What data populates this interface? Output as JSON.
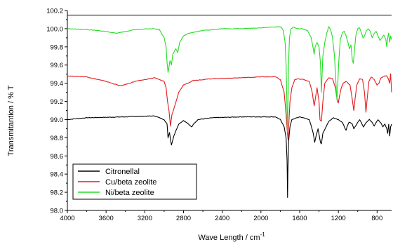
{
  "chart_data": {
    "type": "line",
    "title": "",
    "xlabel": "Wave Length / cm",
    "xlabel_superscript": "-1",
    "ylabel": "Transmitantion / % T",
    "xlim": [
      4000,
      650
    ],
    "ylim": [
      98.0,
      100.2
    ],
    "x_ticks": [
      4000,
      3600,
      3200,
      2800,
      2400,
      2000,
      1600,
      1200,
      800
    ],
    "x_tick_labels": [
      "4000",
      "3600",
      "3200",
      "2800",
      "2400",
      "2000",
      "1600",
      "1200",
      "800"
    ],
    "y_ticks": [
      98.0,
      98.2,
      98.4,
      98.6,
      98.8,
      99.0,
      99.2,
      99.4,
      99.6,
      99.8,
      100.0,
      100.2
    ],
    "y_tick_labels": [
      "98.0",
      "98.2",
      "98.4",
      "98.6",
      "98.8",
      "99.0",
      "99.2",
      "99.4",
      "99.6",
      "99.8",
      "100.0",
      "100.2"
    ],
    "reference_line_y": 100.15,
    "grid": false,
    "legend_position": "bottom-left",
    "series": [
      {
        "name": "Citronellal",
        "color": "#000000",
        "baseline": 99.03,
        "points": [
          [
            4000,
            99.0
          ],
          [
            3800,
            99.02
          ],
          [
            3400,
            99.03
          ],
          [
            3100,
            99.04
          ],
          [
            3000,
            99.0
          ],
          [
            2970,
            98.95
          ],
          [
            2960,
            98.8
          ],
          [
            2945,
            98.86
          ],
          [
            2925,
            98.72
          ],
          [
            2900,
            98.82
          ],
          [
            2870,
            98.9
          ],
          [
            2850,
            98.95
          ],
          [
            2800,
            98.99
          ],
          [
            2760,
            98.96
          ],
          [
            2740,
            98.94
          ],
          [
            2715,
            98.92
          ],
          [
            2690,
            98.96
          ],
          [
            2650,
            99.0
          ],
          [
            2500,
            99.02
          ],
          [
            2200,
            99.03
          ],
          [
            2000,
            99.03
          ],
          [
            1850,
            99.03
          ],
          [
            1800,
            99.0
          ],
          [
            1760,
            98.92
          ],
          [
            1740,
            98.8
          ],
          [
            1730,
            98.55
          ],
          [
            1725,
            98.14
          ],
          [
            1722,
            98.4
          ],
          [
            1715,
            98.75
          ],
          [
            1700,
            98.92
          ],
          [
            1680,
            99.0
          ],
          [
            1600,
            99.03
          ],
          [
            1500,
            99.0
          ],
          [
            1460,
            98.85
          ],
          [
            1445,
            98.75
          ],
          [
            1430,
            98.82
          ],
          [
            1410,
            98.9
          ],
          [
            1385,
            98.75
          ],
          [
            1375,
            98.73
          ],
          [
            1360,
            98.85
          ],
          [
            1300,
            98.98
          ],
          [
            1250,
            99.02
          ],
          [
            1200,
            99.0
          ],
          [
            1160,
            98.97
          ],
          [
            1120,
            98.88
          ],
          [
            1110,
            98.92
          ],
          [
            1090,
            98.97
          ],
          [
            1060,
            98.96
          ],
          [
            1040,
            98.9
          ],
          [
            1010,
            98.95
          ],
          [
            980,
            99.0
          ],
          [
            940,
            98.92
          ],
          [
            920,
            98.96
          ],
          [
            880,
            99.0
          ],
          [
            850,
            98.97
          ],
          [
            830,
            98.93
          ],
          [
            810,
            98.97
          ],
          [
            790,
            99.0
          ],
          [
            760,
            98.96
          ],
          [
            740,
            98.92
          ],
          [
            720,
            98.95
          ],
          [
            700,
            98.9
          ],
          [
            690,
            98.85
          ],
          [
            680,
            98.95
          ],
          [
            670,
            98.82
          ],
          [
            660,
            98.92
          ],
          [
            650,
            98.95
          ]
        ]
      },
      {
        "name": "Cu/beta zeolite",
        "color": "#e31a1c",
        "baseline": 99.45,
        "points": [
          [
            4000,
            99.48
          ],
          [
            3800,
            99.47
          ],
          [
            3600,
            99.42
          ],
          [
            3450,
            99.37
          ],
          [
            3300,
            99.42
          ],
          [
            3100,
            99.46
          ],
          [
            3000,
            99.42
          ],
          [
            2980,
            99.35
          ],
          [
            2965,
            99.2
          ],
          [
            2950,
            99.1
          ],
          [
            2935,
            98.93
          ],
          [
            2920,
            99.05
          ],
          [
            2890,
            99.15
          ],
          [
            2870,
            99.22
          ],
          [
            2850,
            99.3
          ],
          [
            2800,
            99.38
          ],
          [
            2700,
            99.43
          ],
          [
            2500,
            99.45
          ],
          [
            2200,
            99.46
          ],
          [
            2000,
            99.47
          ],
          [
            1850,
            99.47
          ],
          [
            1800,
            99.44
          ],
          [
            1760,
            99.3
          ],
          [
            1740,
            99.05
          ],
          [
            1730,
            98.9
          ],
          [
            1720,
            98.78
          ],
          [
            1712,
            98.95
          ],
          [
            1700,
            99.2
          ],
          [
            1680,
            99.35
          ],
          [
            1650,
            99.44
          ],
          [
            1620,
            99.45
          ],
          [
            1560,
            99.44
          ],
          [
            1500,
            99.42
          ],
          [
            1470,
            99.3
          ],
          [
            1450,
            99.15
          ],
          [
            1435,
            99.25
          ],
          [
            1420,
            99.35
          ],
          [
            1400,
            99.2
          ],
          [
            1390,
            99.0
          ],
          [
            1375,
            98.98
          ],
          [
            1360,
            99.2
          ],
          [
            1340,
            99.4
          ],
          [
            1300,
            99.46
          ],
          [
            1260,
            99.45
          ],
          [
            1230,
            99.35
          ],
          [
            1210,
            99.2
          ],
          [
            1200,
            99.18
          ],
          [
            1190,
            99.25
          ],
          [
            1170,
            99.35
          ],
          [
            1150,
            99.4
          ],
          [
            1120,
            99.42
          ],
          [
            1100,
            99.4
          ],
          [
            1080,
            99.38
          ],
          [
            1060,
            99.25
          ],
          [
            1040,
            99.1
          ],
          [
            1030,
            99.2
          ],
          [
            1010,
            99.38
          ],
          [
            980,
            99.45
          ],
          [
            950,
            99.44
          ],
          [
            930,
            99.3
          ],
          [
            915,
            99.08
          ],
          [
            905,
            99.2
          ],
          [
            885,
            99.42
          ],
          [
            860,
            99.47
          ],
          [
            830,
            99.44
          ],
          [
            800,
            99.38
          ],
          [
            780,
            99.4
          ],
          [
            760,
            99.46
          ],
          [
            720,
            99.48
          ],
          [
            700,
            99.48
          ],
          [
            685,
            99.45
          ],
          [
            670,
            99.4
          ],
          [
            660,
            99.5
          ],
          [
            650,
            99.3
          ]
        ]
      },
      {
        "name": "Ni/beta zeolite",
        "color": "#22dd22",
        "baseline": 100.0,
        "points": [
          [
            4000,
            100.0
          ],
          [
            3800,
            99.99
          ],
          [
            3600,
            99.97
          ],
          [
            3500,
            99.95
          ],
          [
            3450,
            99.96
          ],
          [
            3300,
            99.99
          ],
          [
            3100,
            100.0
          ],
          [
            3050,
            99.99
          ],
          [
            3000,
            99.9
          ],
          [
            2980,
            99.8
          ],
          [
            2970,
            99.63
          ],
          [
            2960,
            99.52
          ],
          [
            2950,
            99.58
          ],
          [
            2940,
            99.65
          ],
          [
            2925,
            99.6
          ],
          [
            2910,
            99.72
          ],
          [
            2880,
            99.78
          ],
          [
            2860,
            99.74
          ],
          [
            2840,
            99.85
          ],
          [
            2800,
            99.92
          ],
          [
            2750,
            99.95
          ],
          [
            2600,
            99.98
          ],
          [
            2400,
            100.0
          ],
          [
            2200,
            100.0
          ],
          [
            2000,
            100.01
          ],
          [
            1850,
            100.02
          ],
          [
            1790,
            100.02
          ],
          [
            1770,
            99.98
          ],
          [
            1750,
            99.85
          ],
          [
            1740,
            99.6
          ],
          [
            1732,
            99.2
          ],
          [
            1727,
            98.86
          ],
          [
            1722,
            99.1
          ],
          [
            1715,
            99.6
          ],
          [
            1705,
            99.9
          ],
          [
            1690,
            100.0
          ],
          [
            1660,
            100.02
          ],
          [
            1630,
            100.0
          ],
          [
            1580,
            100.0
          ],
          [
            1520,
            99.98
          ],
          [
            1480,
            99.9
          ],
          [
            1460,
            99.78
          ],
          [
            1450,
            99.72
          ],
          [
            1440,
            99.8
          ],
          [
            1420,
            99.85
          ],
          [
            1400,
            99.8
          ],
          [
            1385,
            99.62
          ],
          [
            1375,
            99.3
          ],
          [
            1368,
            99.5
          ],
          [
            1360,
            99.7
          ],
          [
            1340,
            99.85
          ],
          [
            1320,
            99.95
          ],
          [
            1300,
            100.02
          ],
          [
            1280,
            99.99
          ],
          [
            1260,
            99.9
          ],
          [
            1240,
            99.7
          ],
          [
            1225,
            99.4
          ],
          [
            1215,
            99.22
          ],
          [
            1208,
            99.35
          ],
          [
            1195,
            99.65
          ],
          [
            1180,
            99.88
          ],
          [
            1160,
            99.95
          ],
          [
            1140,
            99.97
          ],
          [
            1120,
            99.92
          ],
          [
            1100,
            99.85
          ],
          [
            1085,
            99.78
          ],
          [
            1070,
            99.82
          ],
          [
            1055,
            99.65
          ],
          [
            1045,
            99.62
          ],
          [
            1035,
            99.75
          ],
          [
            1020,
            99.92
          ],
          [
            1000,
            100.0
          ],
          [
            980,
            100.01
          ],
          [
            960,
            99.95
          ],
          [
            945,
            99.9
          ],
          [
            930,
            99.92
          ],
          [
            910,
            99.98
          ],
          [
            890,
            100.0
          ],
          [
            870,
            99.97
          ],
          [
            850,
            99.9
          ],
          [
            830,
            99.95
          ],
          [
            810,
            99.97
          ],
          [
            790,
            99.92
          ],
          [
            770,
            99.87
          ],
          [
            750,
            99.9
          ],
          [
            730,
            99.93
          ],
          [
            710,
            99.88
          ],
          [
            700,
            99.8
          ],
          [
            690,
            99.9
          ],
          [
            680,
            99.95
          ],
          [
            670,
            99.85
          ],
          [
            660,
            99.92
          ],
          [
            650,
            99.88
          ]
        ]
      }
    ]
  }
}
